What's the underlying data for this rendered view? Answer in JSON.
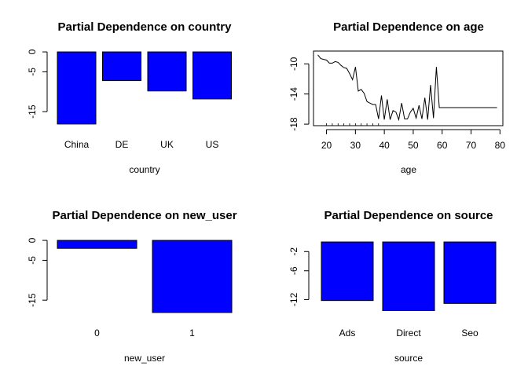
{
  "chart_data": [
    {
      "type": "bar",
      "title": "Partial Dependence on country",
      "xlabel": "country",
      "ylabel": "",
      "categories": [
        "China",
        "DE",
        "UK",
        "US"
      ],
      "values": [
        -18.1,
        -7.2,
        -9.8,
        -11.8
      ],
      "ylim": [
        -19.5,
        0.8
      ],
      "yticks": [
        0,
        -5,
        -15
      ],
      "ytick_labels": [
        "0",
        "-5",
        "-15"
      ],
      "bar_color": "#0000ff"
    },
    {
      "type": "line",
      "title": "Partial Dependence on age",
      "xlabel": "age",
      "ylabel": "",
      "x": [
        17,
        18,
        19,
        20,
        21,
        22,
        23,
        24,
        25,
        26,
        27,
        28,
        29,
        30,
        31,
        32,
        33,
        34,
        35,
        36,
        37,
        38,
        39,
        40,
        41,
        42,
        43,
        44,
        45,
        46,
        47,
        48,
        49,
        50,
        51,
        52,
        53,
        54,
        55,
        56,
        57,
        58,
        59,
        60,
        61,
        62,
        63,
        64,
        65,
        66,
        67,
        68,
        69,
        70,
        71,
        72,
        73,
        74,
        75,
        76,
        77,
        78,
        79
      ],
      "y": [
        -8.8,
        -9.3,
        -9.4,
        -9.5,
        -9.9,
        -9.9,
        -9.7,
        -9.8,
        -10.2,
        -10.5,
        -10.6,
        -11.3,
        -12.1,
        -10.4,
        -13.6,
        -13.4,
        -13.9,
        -15.0,
        -15.2,
        -15.4,
        -15.4,
        -17.3,
        -14.2,
        -17.4,
        -14.7,
        -17.4,
        -16.2,
        -16.4,
        -17.4,
        -15.2,
        -17.3,
        -17.3,
        -16.4,
        -15.9,
        -17.2,
        -15.5,
        -17.3,
        -14.5,
        -17.4,
        -12.8,
        -17.2,
        -10.4,
        -15.8,
        -15.8,
        -15.8,
        -15.8,
        -15.8,
        -15.8,
        -15.8,
        -15.8,
        -15.8,
        -15.8,
        -15.8,
        -15.8,
        -15.8,
        -15.8,
        -15.8,
        -15.8,
        -15.8,
        -15.8,
        -15.8,
        -15.8,
        -15.8
      ],
      "xlim": [
        15.5,
        81
      ],
      "ylim": [
        -18.2,
        -8.3
      ],
      "xticks": [
        20,
        30,
        40,
        50,
        60,
        70,
        80
      ],
      "yticks": [
        -10,
        -14,
        -18
      ],
      "ytick_labels": [
        "-10",
        "-14",
        "-18"
      ],
      "rug": [
        20,
        22,
        24,
        26,
        28,
        30,
        32,
        34,
        36,
        38
      ],
      "line_color": "#000000"
    },
    {
      "type": "bar",
      "title": "Partial Dependence on new_user",
      "xlabel": "new_user",
      "ylabel": "",
      "categories": [
        "0",
        "1"
      ],
      "values": [
        -2.0,
        -18.1
      ],
      "ylim": [
        -19.5,
        0.8
      ],
      "yticks": [
        0,
        -5,
        -15
      ],
      "ytick_labels": [
        "0",
        "-5",
        "-15"
      ],
      "bar_color": "#0000ff"
    },
    {
      "type": "bar",
      "title": "Partial Dependence on source",
      "xlabel": "source",
      "ylabel": "",
      "categories": [
        "Ads",
        "Direct",
        "Seo"
      ],
      "values": [
        -12.2,
        -14.3,
        -12.8
      ],
      "ylim": [
        -15.2,
        0.5
      ],
      "yticks": [
        -2,
        -6,
        -12
      ],
      "ytick_labels": [
        "-2",
        "-6",
        "-12"
      ],
      "bar_color": "#0000ff"
    }
  ]
}
